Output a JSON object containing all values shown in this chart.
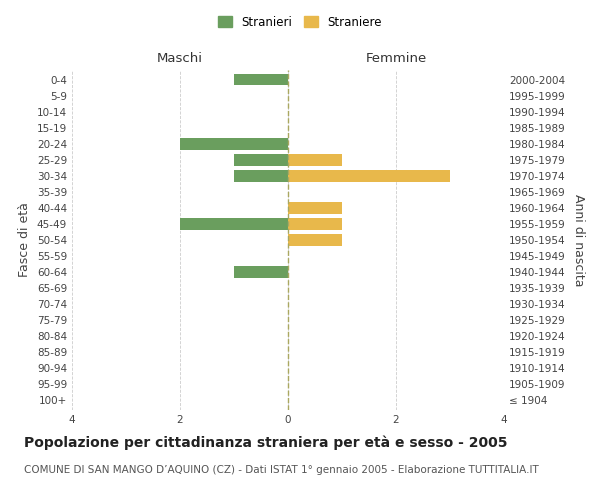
{
  "age_groups": [
    "100+",
    "95-99",
    "90-94",
    "85-89",
    "80-84",
    "75-79",
    "70-74",
    "65-69",
    "60-64",
    "55-59",
    "50-54",
    "45-49",
    "40-44",
    "35-39",
    "30-34",
    "25-29",
    "20-24",
    "15-19",
    "10-14",
    "5-9",
    "0-4"
  ],
  "birth_years": [
    "≤ 1904",
    "1905-1909",
    "1910-1914",
    "1915-1919",
    "1920-1924",
    "1925-1929",
    "1930-1934",
    "1935-1939",
    "1940-1944",
    "1945-1949",
    "1950-1954",
    "1955-1959",
    "1960-1964",
    "1965-1969",
    "1970-1974",
    "1975-1979",
    "1980-1984",
    "1985-1989",
    "1990-1994",
    "1995-1999",
    "2000-2004"
  ],
  "maschi": [
    0,
    0,
    0,
    0,
    0,
    0,
    0,
    0,
    1,
    0,
    0,
    2,
    0,
    0,
    1,
    1,
    2,
    0,
    0,
    0,
    1
  ],
  "femmine": [
    0,
    0,
    0,
    0,
    0,
    0,
    0,
    0,
    0,
    0,
    1,
    1,
    1,
    0,
    3,
    1,
    0,
    0,
    0,
    0,
    0
  ],
  "male_color": "#6a9e5e",
  "female_color": "#e8b84b",
  "xlim": 4,
  "xlabel_left": "Maschi",
  "xlabel_right": "Femmine",
  "ylabel_left": "Fasce di età",
  "ylabel_right": "Anni di nascita",
  "legend_male": "Stranieri",
  "legend_female": "Straniere",
  "title": "Popolazione per cittadinanza straniera per età e sesso - 2005",
  "subtitle": "COMUNE DI SAN MANGO D’AQUINO (CZ) - Dati ISTAT 1° gennaio 2005 - Elaborazione TUTTITALIA.IT",
  "background_color": "#ffffff",
  "grid_color": "#cccccc",
  "title_fontsize": 10,
  "subtitle_fontsize": 7.5,
  "tick_fontsize": 7.5,
  "label_fontsize": 9
}
